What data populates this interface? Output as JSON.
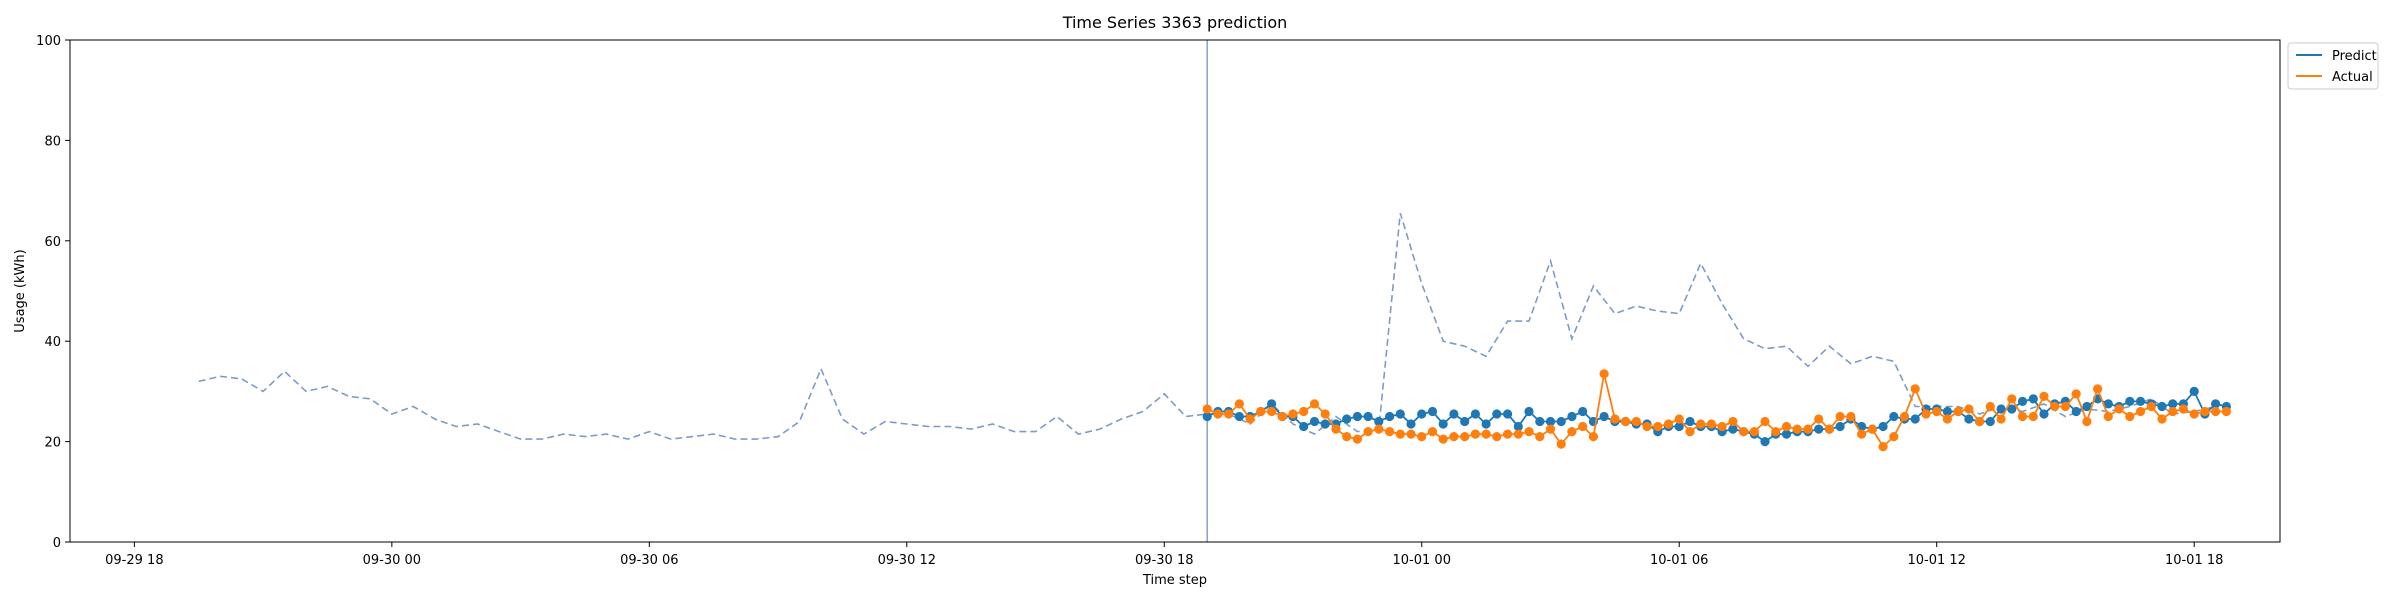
{
  "chart_data": {
    "type": "line",
    "title": "Time Series 3363 prediction",
    "xlabel": "Time step",
    "ylabel": "Usage (kWh)",
    "ylim": [
      0,
      100
    ],
    "yticks": [
      0,
      20,
      40,
      60,
      80,
      100
    ],
    "xlim": [
      "2024-09-29 16:30",
      "2024-10-01 20:00"
    ],
    "xticks": [
      {
        "t": "2024-09-29 18:00",
        "label": "09-29 18"
      },
      {
        "t": "2024-09-30 00:00",
        "label": "09-30 00"
      },
      {
        "t": "2024-09-30 06:00",
        "label": "09-30 06"
      },
      {
        "t": "2024-09-30 12:00",
        "label": "09-30 12"
      },
      {
        "t": "2024-09-30 18:00",
        "label": "09-30 18"
      },
      {
        "t": "2024-10-01 00:00",
        "label": "10-01 00"
      },
      {
        "t": "2024-10-01 06:00",
        "label": "10-01 06"
      },
      {
        "t": "2024-10-01 12:00",
        "label": "10-01 12"
      },
      {
        "t": "2024-10-01 18:00",
        "label": "10-01 18"
      }
    ],
    "grid": false,
    "legend_position": "top-right-outside",
    "history": {
      "start": "2024-09-29 19:30",
      "step_minutes": 30,
      "color": "#7b9cc9",
      "values": [
        32,
        33,
        32.5,
        30,
        34,
        30,
        31,
        29,
        28.5,
        25.5,
        27,
        24.5,
        23,
        23.5,
        22,
        20.5,
        20.5,
        21.5,
        21,
        21.5,
        20.5,
        22,
        20.5,
        21,
        21.5,
        20.5,
        20.5,
        21,
        24,
        34.5,
        24.5,
        21.5,
        24,
        23.5,
        23,
        23,
        22.5,
        23.5,
        22,
        22,
        25,
        21.5,
        22.5,
        24.5,
        26,
        29.5,
        25,
        25.5,
        25.5,
        23.5,
        27.5,
        23.5,
        21.5,
        25,
        22,
        22.5,
        65.5,
        51.5,
        40,
        39,
        37,
        44,
        44,
        56,
        40.5,
        51,
        45.5,
        47,
        46,
        45.5,
        55.5,
        47.5,
        40.5,
        38.5,
        39,
        35,
        39,
        35.5,
        37,
        36,
        27,
        27,
        27,
        25.5,
        27,
        26,
        27.5,
        25,
        26.5,
        26,
        27,
        28.5,
        25.5,
        26,
        27
      ]
    },
    "split_marker": "2024-09-30 19:00",
    "forecast_start": "2024-09-30 19:00",
    "forecast_step_minutes": 15,
    "series": [
      {
        "name": "Predict",
        "color": "#1f77b4",
        "values": [
          25,
          26,
          26,
          25,
          25,
          26,
          27.5,
          25,
          25,
          23,
          24,
          23.5,
          23.5,
          24.5,
          25,
          25,
          24,
          25,
          25.5,
          23.5,
          25.5,
          26,
          23.5,
          25.5,
          24,
          25.5,
          23.5,
          25.5,
          25.5,
          23,
          26,
          24,
          24,
          24,
          25,
          26,
          24,
          25,
          24,
          24,
          23.5,
          23.5,
          22,
          23,
          23,
          24,
          23,
          23,
          22,
          22.5,
          22,
          21.5,
          20,
          21.5,
          21.5,
          22,
          22,
          22.5,
          22.5,
          23,
          24.5,
          23,
          22.5,
          23,
          25,
          24.5,
          24.5,
          26.5,
          26.5,
          26,
          26,
          24.5,
          24,
          24,
          26.5,
          26.5,
          28,
          28.5,
          25.5,
          27.5,
          28,
          26,
          27,
          28.5,
          27.5,
          27,
          28,
          28,
          27.5,
          27,
          27.5,
          27.5,
          30,
          25.5,
          27.5,
          27
        ]
      },
      {
        "name": "Actual",
        "color": "#ff7f0e",
        "values": [
          26.5,
          25.5,
          25.5,
          27.5,
          24.5,
          26,
          26,
          25,
          25.5,
          26,
          27.5,
          25.5,
          22.5,
          21,
          20.5,
          22,
          22.5,
          22,
          21.5,
          21.5,
          21,
          22,
          20.5,
          21,
          21,
          21.5,
          21.5,
          21,
          21.5,
          21.5,
          22,
          21,
          22.5,
          19.5,
          22,
          23,
          21,
          33.5,
          24.5,
          24,
          24,
          23,
          23,
          23.5,
          24.5,
          22,
          23.5,
          23.5,
          23,
          24,
          22,
          22,
          24,
          22,
          23,
          22.5,
          22.5,
          24.5,
          22.5,
          25,
          25,
          21.5,
          22.5,
          19,
          21,
          25,
          30.5,
          25.5,
          26,
          24.5,
          26,
          26.5,
          24,
          27,
          24.5,
          28.5,
          25,
          25,
          29,
          27,
          27,
          29.5,
          24,
          30.5,
          25,
          26.5,
          25,
          26,
          27,
          24.5,
          26,
          26.5,
          25.5,
          26,
          26,
          26
        ]
      }
    ]
  }
}
